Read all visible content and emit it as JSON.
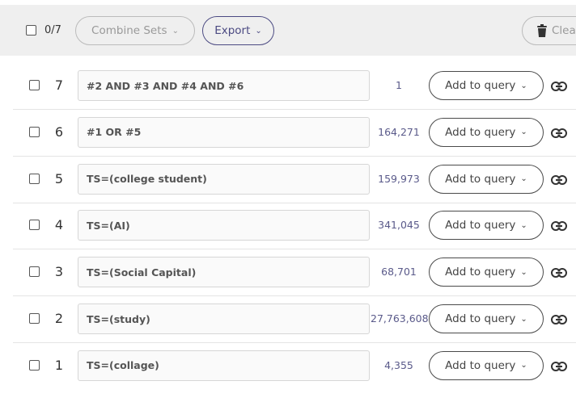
{
  "toolbar": {
    "selection_count": "0/7",
    "combine_label": "Combine Sets",
    "export_label": "Export",
    "clear_label": "Clear"
  },
  "rows": [
    {
      "num": "7",
      "query": "#2 AND #3 AND #4 AND #6",
      "count": "1",
      "add_label": "Add to query"
    },
    {
      "num": "6",
      "query": "#1 OR #5",
      "count": "164,271",
      "add_label": "Add to query"
    },
    {
      "num": "5",
      "query": "TS=(college student)",
      "count": "159,973",
      "add_label": "Add to query"
    },
    {
      "num": "4",
      "query": "TS=(AI)",
      "count": "341,045",
      "add_label": "Add to query"
    },
    {
      "num": "3",
      "query": "TS=(Social Capital)",
      "count": "68,701",
      "add_label": "Add to query"
    },
    {
      "num": "2",
      "query": "TS=(study)",
      "count": "27,763,608",
      "add_label": "Add to query"
    },
    {
      "num": "1",
      "query": "TS=(collage)",
      "count": "4,355",
      "add_label": "Add to query"
    }
  ],
  "icons": {
    "dropdown": "chevron-down-icon",
    "clear": "trash-icon",
    "row_link": "link-icon"
  },
  "colors": {
    "accent": "#4b4a82",
    "count_text": "#5a5a8a",
    "toolbar_bg": "#efefef"
  }
}
